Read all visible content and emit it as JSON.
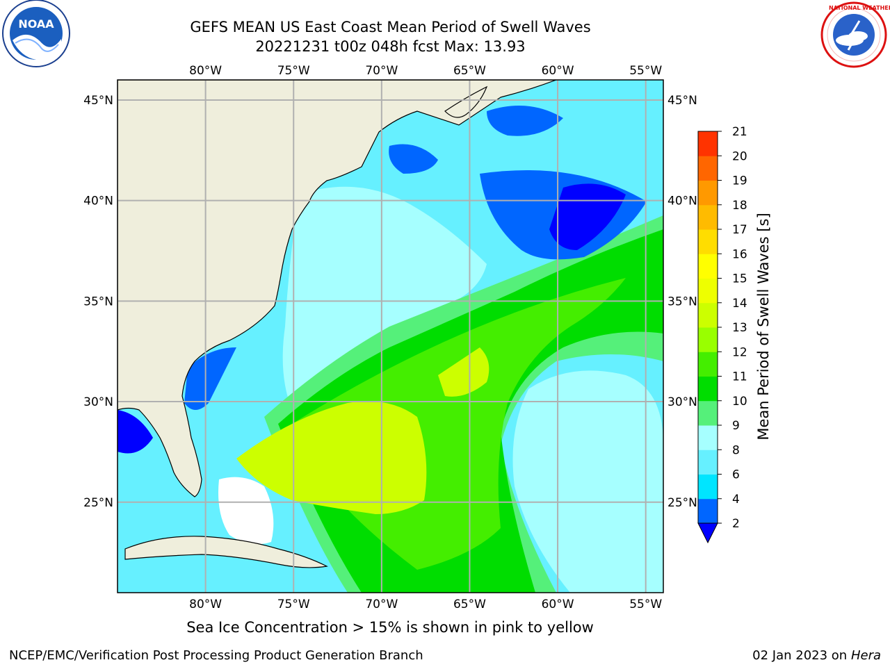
{
  "title": {
    "line1": "GEFS MEAN US East Coast Mean Period of Swell Waves",
    "line2": "20221231 t00z 048h fcst   Max: 13.93"
  },
  "map": {
    "lon_range": [
      -85,
      -54
    ],
    "lat_range": [
      20.5,
      46
    ],
    "lon_ticks": [
      "80°W",
      "75°W",
      "70°W",
      "65°W",
      "60°W",
      "55°W"
    ],
    "lat_ticks": [
      "45°N",
      "40°N",
      "35°N",
      "30°N",
      "25°N"
    ],
    "colors": {
      "land": "#efeedc",
      "grid": "#b0b0b0",
      "coast": "#000000",
      "unfilled": "#ffffff"
    }
  },
  "colorbar": {
    "label": "Mean Period of Swell Waves [s]",
    "tick_values": [
      "2",
      "4",
      "6",
      "8",
      "9",
      "10",
      "11",
      "12",
      "13",
      "14",
      "15",
      "16",
      "17",
      "18",
      "19",
      "20",
      "21"
    ],
    "colors": [
      "#0066ff",
      "#00e5ff",
      "#66f0ff",
      "#a6ffff",
      "#55f07a",
      "#00dd00",
      "#44ee00",
      "#99ff00",
      "#ccff00",
      "#eeff00",
      "#ffff00",
      "#ffdd00",
      "#ffbb00",
      "#ff9900",
      "#ff6600",
      "#ff3300"
    ],
    "under_color": "#0000ff"
  },
  "footer": {
    "note": "Sea Ice Concentration > 15% is shown in pink to yellow",
    "credit": "NCEP/EMC/Verification Post Processing Product Generation Branch",
    "date": "02 Jan 2023 on ",
    "machine": "Hera"
  },
  "logos": {
    "noaa_text": "NOAA",
    "nws_text": "NATIONAL WEATHER SERVICE"
  }
}
